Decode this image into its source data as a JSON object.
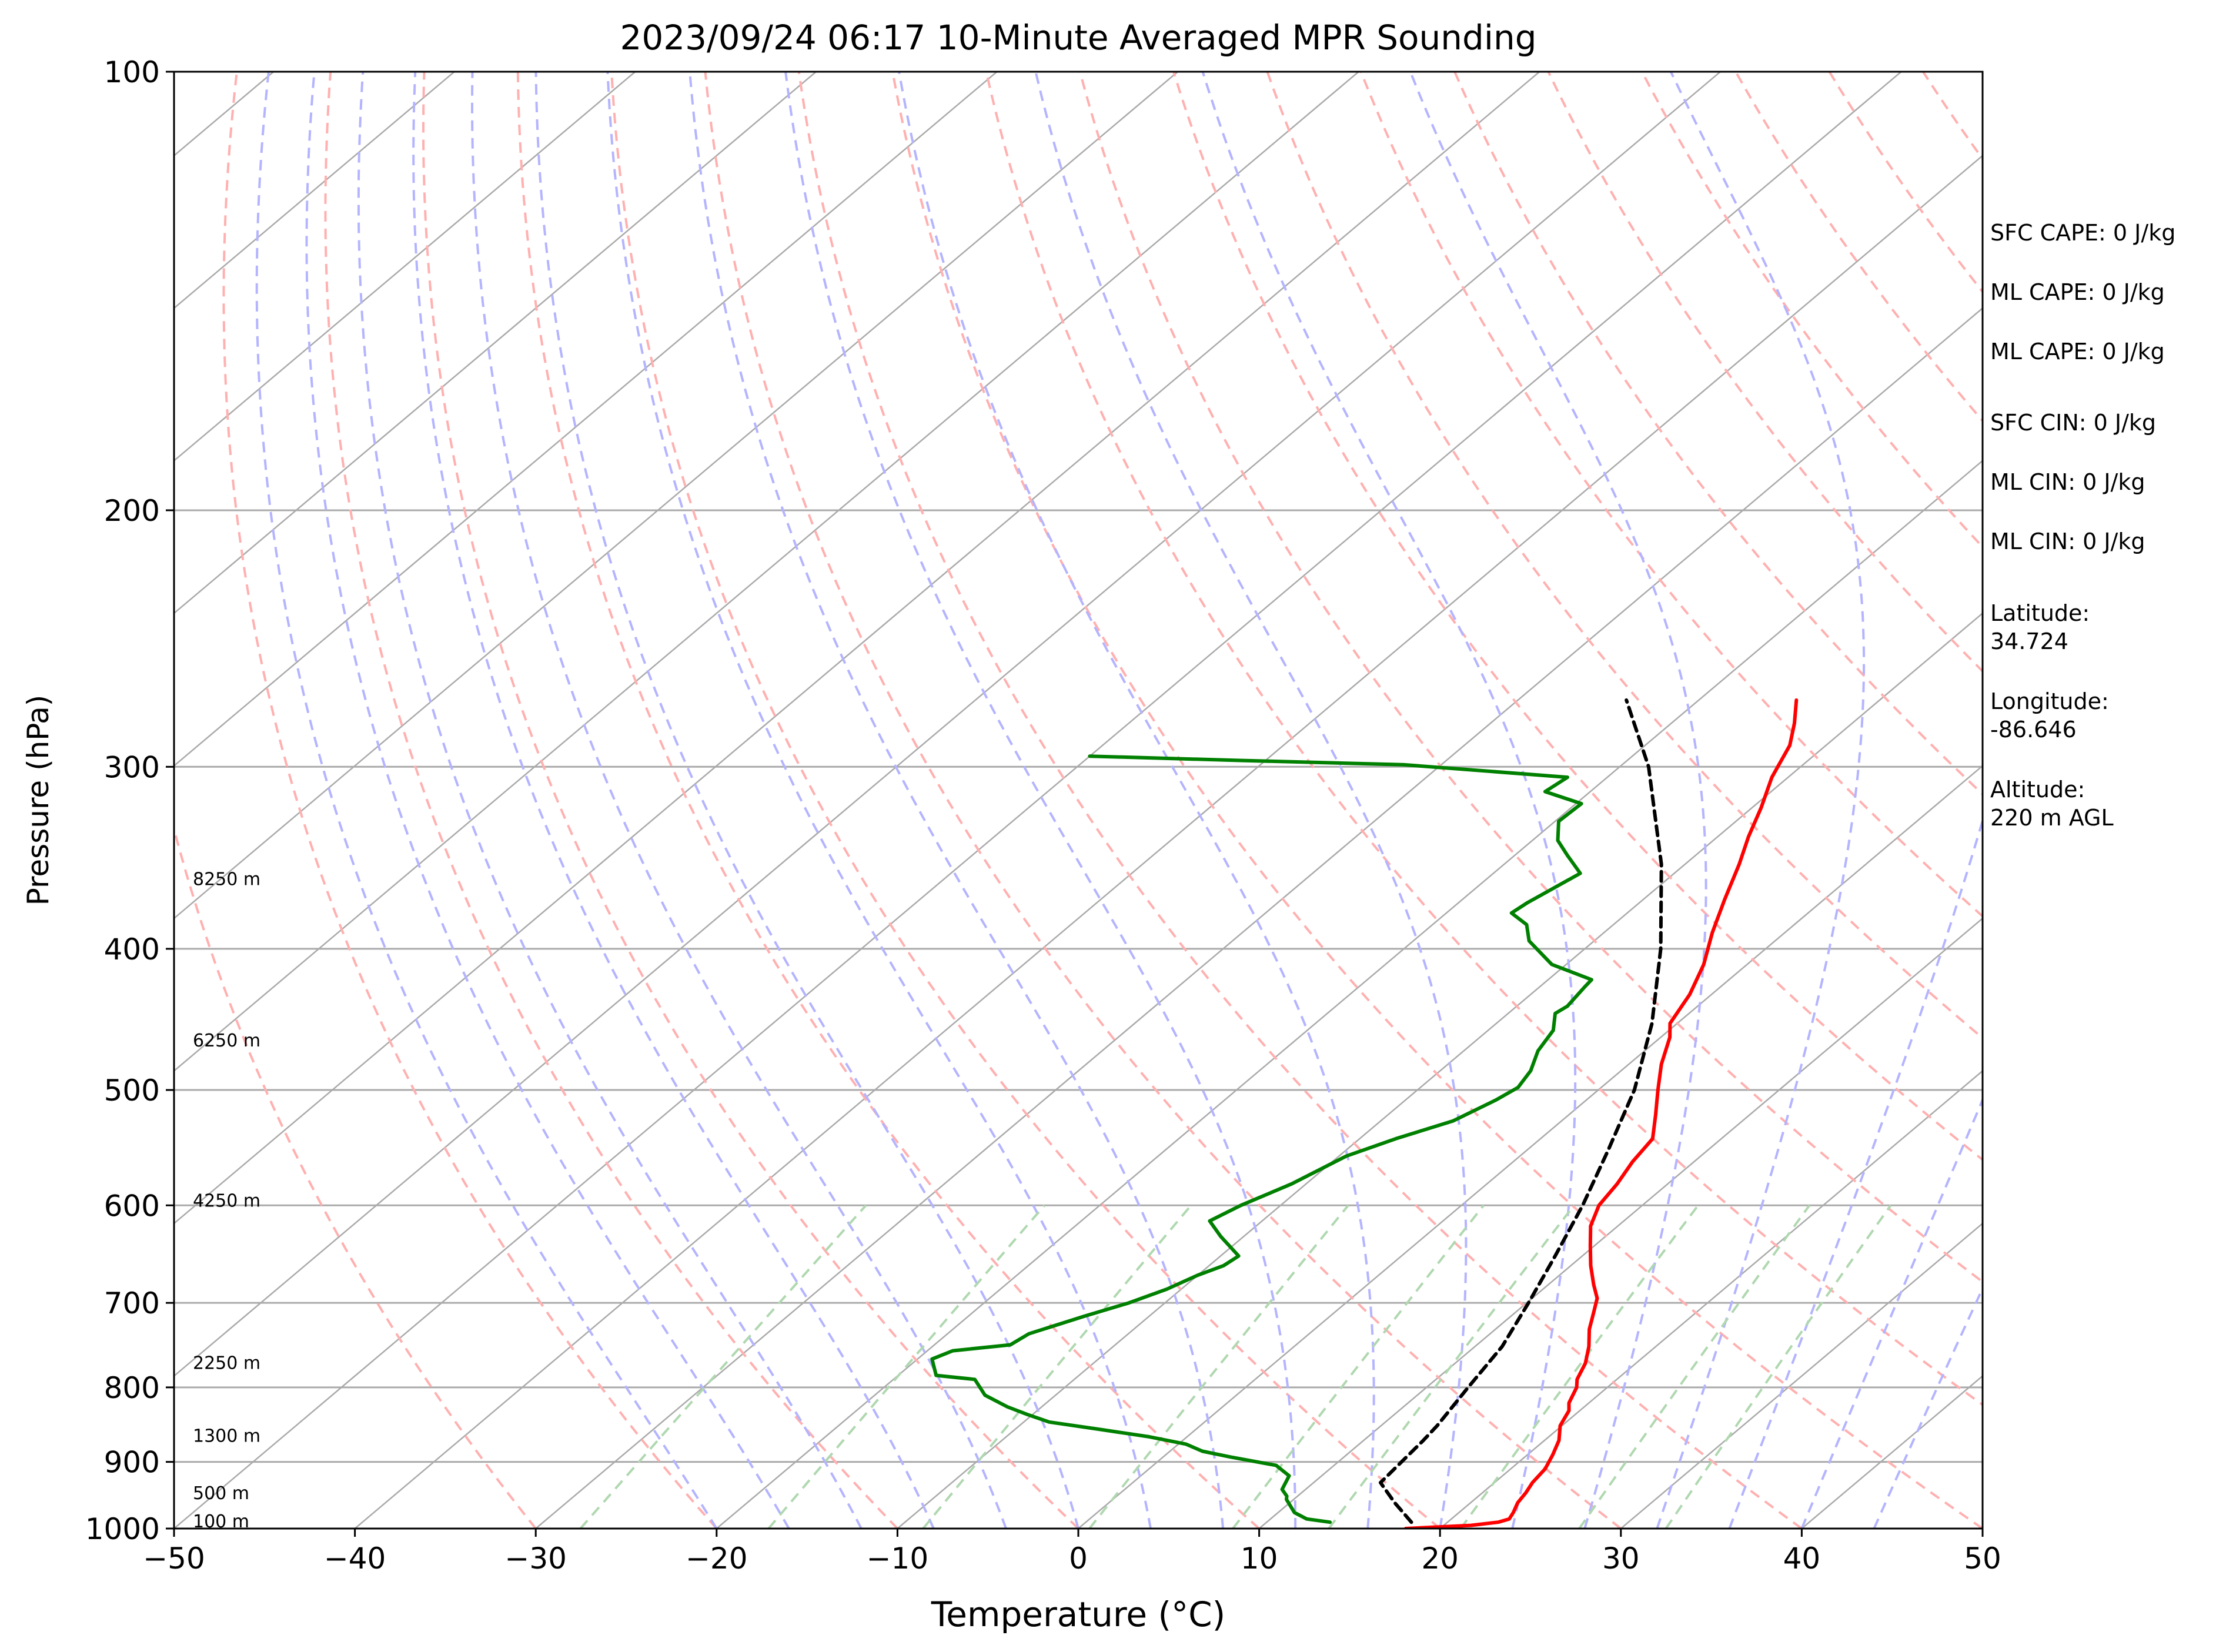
{
  "chart_data": {
    "type": "line",
    "subtype": "skew-t log-p sounding",
    "title": "2023/09/24 06:17 10-Minute Averaged MPR Sounding",
    "xlabel": "Temperature (°C)",
    "ylabel": "Pressure (hPa)",
    "xlim": [
      -50,
      50
    ],
    "ylim": [
      1000,
      100
    ],
    "y_scale": "log",
    "x_ticks": [
      "−50",
      "−40",
      "−30",
      "−20",
      "−10",
      "0",
      "10",
      "20",
      "30",
      "40",
      "50"
    ],
    "y_ticks": [
      "100",
      "200",
      "300",
      "400",
      "500",
      "600",
      "700",
      "800",
      "900",
      "1000"
    ],
    "grid": true,
    "series": [
      {
        "name": "",
        "color": "#ff0000",
        "style": "solid",
        "points": [
          [
            1000,
            18.1
          ],
          [
            995,
            21.5
          ],
          [
            990,
            22.8
          ],
          [
            985,
            23.2
          ],
          [
            975,
            23
          ],
          [
            960,
            22.6
          ],
          [
            945,
            22.4
          ],
          [
            930,
            22.1
          ],
          [
            910,
            21.9
          ],
          [
            890,
            21.4
          ],
          [
            870,
            20.8
          ],
          [
            850,
            19.9
          ],
          [
            830,
            19.4
          ],
          [
            820,
            18.9
          ],
          [
            800,
            18.3
          ],
          [
            790,
            17.8
          ],
          [
            770,
            17.2
          ],
          [
            750,
            16.3
          ],
          [
            730,
            15.2
          ],
          [
            710,
            14.3
          ],
          [
            695,
            13.6
          ],
          [
            680,
            12.5
          ],
          [
            660,
            11.1
          ],
          [
            640,
            9.8
          ],
          [
            620,
            8.5
          ],
          [
            600,
            7.6
          ],
          [
            580,
            7.2
          ],
          [
            560,
            6.6
          ],
          [
            540,
            6.2
          ],
          [
            520,
            4.8
          ],
          [
            500,
            3.3
          ],
          [
            480,
            1.8
          ],
          [
            460,
            0.5
          ],
          [
            450,
            -0.4
          ],
          [
            430,
            -1.2
          ],
          [
            410,
            -2.4
          ],
          [
            390,
            -4
          ],
          [
            370,
            -5.5
          ],
          [
            350,
            -7
          ],
          [
            335,
            -8.3
          ],
          [
            320,
            -9.5
          ],
          [
            305,
            -10.9
          ],
          [
            290,
            -12
          ],
          [
            280,
            -13.2
          ],
          [
            270,
            -14.6
          ]
        ]
      },
      {
        "name": "",
        "color": "#008000",
        "style": "solid",
        "points": [
          [
            990,
            13.5
          ],
          [
            985,
            12
          ],
          [
            975,
            10.9
          ],
          [
            955,
            9.6
          ],
          [
            950,
            9.4
          ],
          [
            940,
            8.7
          ],
          [
            920,
            8.2
          ],
          [
            905,
            6.8
          ],
          [
            893,
            3.7
          ],
          [
            885,
            1.8
          ],
          [
            875,
            0.4
          ],
          [
            865,
            -2.1
          ],
          [
            855,
            -5.3
          ],
          [
            845,
            -8.6
          ],
          [
            835,
            -10.3
          ],
          [
            825,
            -11.9
          ],
          [
            810,
            -13.9
          ],
          [
            790,
            -15.5
          ],
          [
            785,
            -17.9
          ],
          [
            765,
            -19.2
          ],
          [
            755,
            -18.6
          ],
          [
            748,
            -15.8
          ],
          [
            735,
            -15.5
          ],
          [
            715,
            -13.6
          ],
          [
            700,
            -12
          ],
          [
            685,
            -10.8
          ],
          [
            670,
            -10
          ],
          [
            660,
            -9.2
          ],
          [
            650,
            -9
          ],
          [
            630,
            -11.3
          ],
          [
            615,
            -12.9
          ],
          [
            600,
            -12.2
          ],
          [
            580,
            -10.8
          ],
          [
            555,
            -9.6
          ],
          [
            540,
            -8
          ],
          [
            525,
            -6
          ],
          [
            508,
            -5
          ],
          [
            498,
            -4.6
          ],
          [
            485,
            -5
          ],
          [
            470,
            -5.9
          ],
          [
            455,
            -6.4
          ],
          [
            443,
            -7.4
          ],
          [
            438,
            -7.2
          ],
          [
            425,
            -7.5
          ],
          [
            420,
            -7.6
          ],
          [
            410,
            -10.8
          ],
          [
            395,
            -13.6
          ],
          [
            385,
            -14.8
          ],
          [
            378,
            -16.4
          ],
          [
            372,
            -16.2
          ],
          [
            355,
            -15.2
          ],
          [
            345,
            -17.1
          ],
          [
            337,
            -18.6
          ],
          [
            327,
            -19.8
          ],
          [
            318,
            -19.7
          ],
          [
            312,
            -22.5
          ],
          [
            305,
            -22.2
          ],
          [
            299,
            -32.1
          ],
          [
            297,
            -41.4
          ],
          [
            295,
            -50
          ]
        ]
      },
      {
        "name": "",
        "color": "#000000",
        "style": "dashed",
        "points": [
          [
            990,
            18
          ],
          [
            960,
            15.8
          ],
          [
            930,
            13.7
          ],
          [
            900,
            13.5
          ],
          [
            870,
            13.3
          ],
          [
            850,
            13.1
          ],
          [
            800,
            12.3
          ],
          [
            750,
            11.5
          ],
          [
            700,
            10.1
          ],
          [
            650,
            8.5
          ],
          [
            600,
            6.7
          ],
          [
            550,
            4.5
          ],
          [
            500,
            2
          ],
          [
            450,
            -1.4
          ],
          [
            400,
            -5.8
          ],
          [
            350,
            -11.3
          ],
          [
            300,
            -18.4
          ],
          [
            270,
            -24
          ]
        ]
      }
    ],
    "height_labels": [
      {
        "label": "100 m",
        "pressure": 988
      },
      {
        "label": "500 m",
        "pressure": 945
      },
      {
        "label": "1300 m",
        "pressure": 863
      },
      {
        "label": "2250 m",
        "pressure": 769
      },
      {
        "label": "4250 m",
        "pressure": 595
      },
      {
        "label": "6250 m",
        "pressure": 462
      },
      {
        "label": "8250 m",
        "pressure": 358
      }
    ],
    "reference_lines": {
      "isotherm_color": "#aaaaaa",
      "dry_adiabat_color": "#ffb0b0",
      "moist_adiabat_color": "#b4b4ff",
      "mixing_ratio_color": "#b0d8b0",
      "isobar_color": "#aaaaaa"
    }
  },
  "side_info": {
    "sfc_cape": "SFC CAPE: 0 J/kg",
    "ml_cape": "ML CAPE: 0 J/kg",
    "mu_cape": "ML CAPE: 0 J/kg",
    "sfc_cin": "SFC CIN: 0 J/kg",
    "ml_cin": "ML CIN: 0 J/kg",
    "mu_cin": "ML CIN: 0 J/kg",
    "latitude_label": "Latitude:",
    "latitude_value": "34.724",
    "longitude_label": "Longitude:",
    "longitude_value": "-86.646",
    "altitude_label": "Altitude:",
    "altitude_value": "220 m AGL"
  }
}
